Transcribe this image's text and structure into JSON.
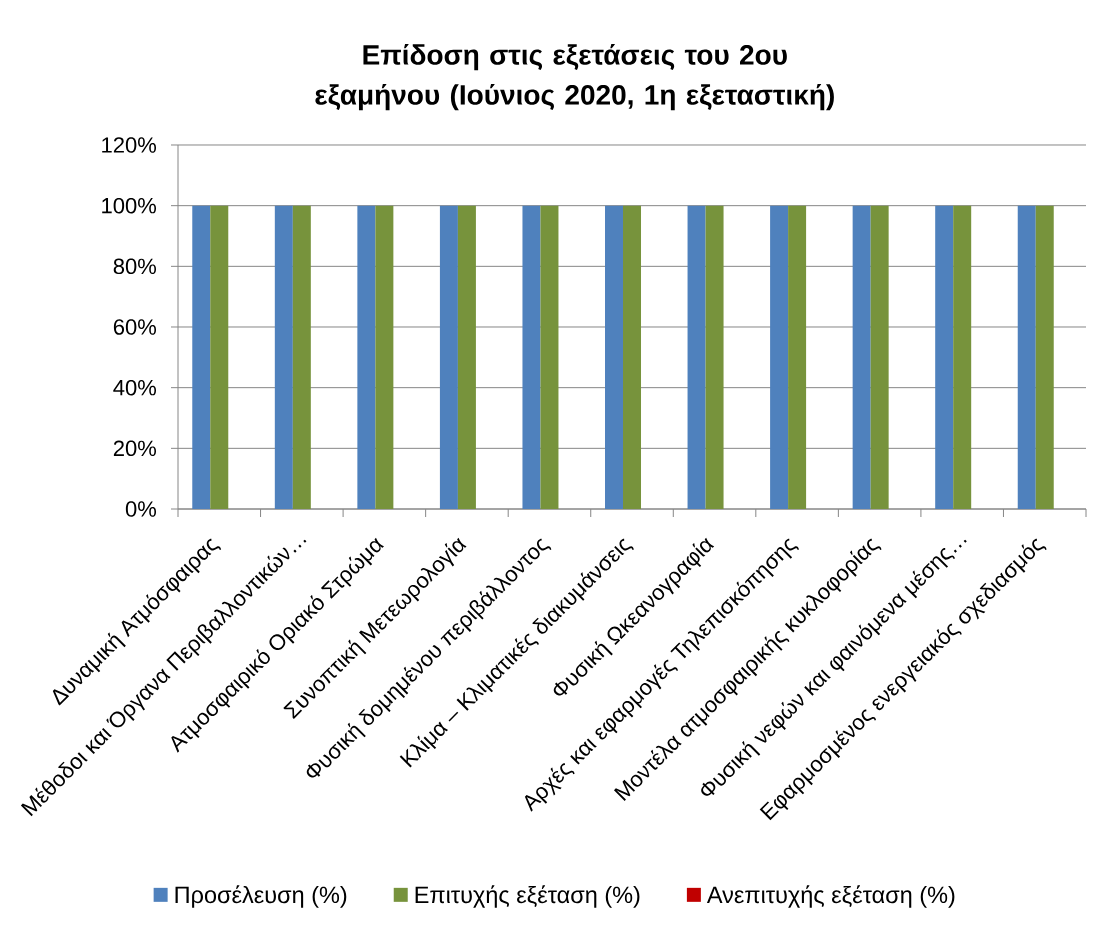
{
  "chart_data": {
    "type": "bar",
    "title": "Επίδοση στις εξετάσεις του 2ου εξαμήνου (Ιούνιος 2020, 1η εξεταστική)",
    "categories": [
      "Δυναμική Ατμόσφαιρας",
      "Μέθοδοι και Όργανα Περιβαλλοντικών…",
      "Ατμοσφαιρικό Οριακό Στρώμα",
      "Συνοπτική Μετεωρολογία",
      "Φυσική δομημένου περιβάλλοντος",
      "Κλίμα – Κλιματικές διακυμάνσεις",
      "Φυσική Ωκεανογραφία",
      "Αρχές και εφαρμογές Τηλεπισκόπησης",
      "Μοντέλα ατμοσφαιρικής κυκλοφορίας",
      "Φυσική νεφών και φαινόμενα μέσης…",
      "Εφαρμοσμένος ενεργειακός σχεδιασμός"
    ],
    "series": [
      {
        "name": "Προσέλευση (%)",
        "color": "#4f81bd",
        "values": [
          100,
          100,
          100,
          100,
          100,
          100,
          100,
          100,
          100,
          100,
          100
        ]
      },
      {
        "name": "Επιτυχής εξέταση (%)",
        "color": "#77933c",
        "values": [
          100,
          100,
          100,
          100,
          100,
          100,
          100,
          100,
          100,
          100,
          100
        ]
      },
      {
        "name": "Ανεπιτυχής εξέταση (%)",
        "color": "#c00000",
        "values": [
          0,
          0,
          0,
          0,
          0,
          0,
          0,
          0,
          0,
          0,
          0
        ]
      }
    ],
    "ylim": [
      0,
      120
    ],
    "yticks": [
      {
        "value": 0,
        "label": "0%"
      },
      {
        "value": 20,
        "label": "20%"
      },
      {
        "value": 40,
        "label": "40%"
      },
      {
        "value": 60,
        "label": "60%"
      },
      {
        "value": 80,
        "label": "80%"
      },
      {
        "value": 100,
        "label": "100%"
      },
      {
        "value": 120,
        "label": "120%"
      }
    ],
    "grid": "y",
    "legend": "bottom"
  }
}
